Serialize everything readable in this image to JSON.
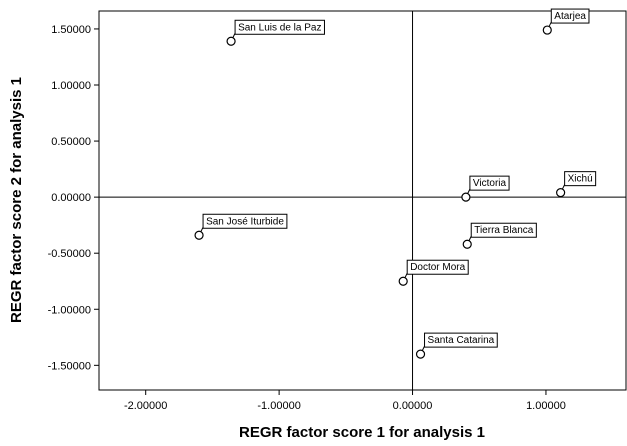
{
  "chart_data": {
    "type": "scatter",
    "xlabel": "REGR factor score   1 for analysis 1",
    "ylabel": "REGR factor score   2 for analysis 1",
    "xlim": [
      -2.35,
      1.6
    ],
    "ylim": [
      -1.72,
      1.66
    ],
    "xticks": [
      -2.0,
      -1.0,
      0.0,
      1.0
    ],
    "xtick_labels": [
      "-2.00000",
      "-1.00000",
      "0.00000",
      "1.00000"
    ],
    "yticks": [
      1.5,
      1.0,
      0.5,
      0.0,
      -0.5,
      -1.0,
      -1.5
    ],
    "ytick_labels": [
      "1.50000",
      "1.00000",
      "0.50000",
      "0.00000",
      "-0.50000",
      "-1.00000",
      "-1.50000"
    ],
    "reference_lines": {
      "x": 0,
      "y": 0
    },
    "grid": false,
    "legend": "none",
    "points": [
      {
        "label": "San Luis de la Paz",
        "x": -1.36,
        "y": 1.39,
        "label_pos": "upper-right"
      },
      {
        "label": "Atarjea",
        "x": 1.01,
        "y": 1.49,
        "label_pos": "upper-right"
      },
      {
        "label": "Victoria",
        "x": 0.4,
        "y": 0.0,
        "label_pos": "upper-right"
      },
      {
        "label": "Xichú",
        "x": 1.11,
        "y": 0.04,
        "label_pos": "upper-right"
      },
      {
        "label": "San José Iturbide",
        "x": -1.6,
        "y": -0.34,
        "label_pos": "upper-right"
      },
      {
        "label": "Tierra Blanca",
        "x": 0.41,
        "y": -0.42,
        "label_pos": "upper-right"
      },
      {
        "label": "Doctor Mora",
        "x": -0.07,
        "y": -0.75,
        "label_pos": "upper-right"
      },
      {
        "label": "Santa Catarina",
        "x": 0.06,
        "y": -1.4,
        "label_pos": "upper-right"
      }
    ]
  }
}
